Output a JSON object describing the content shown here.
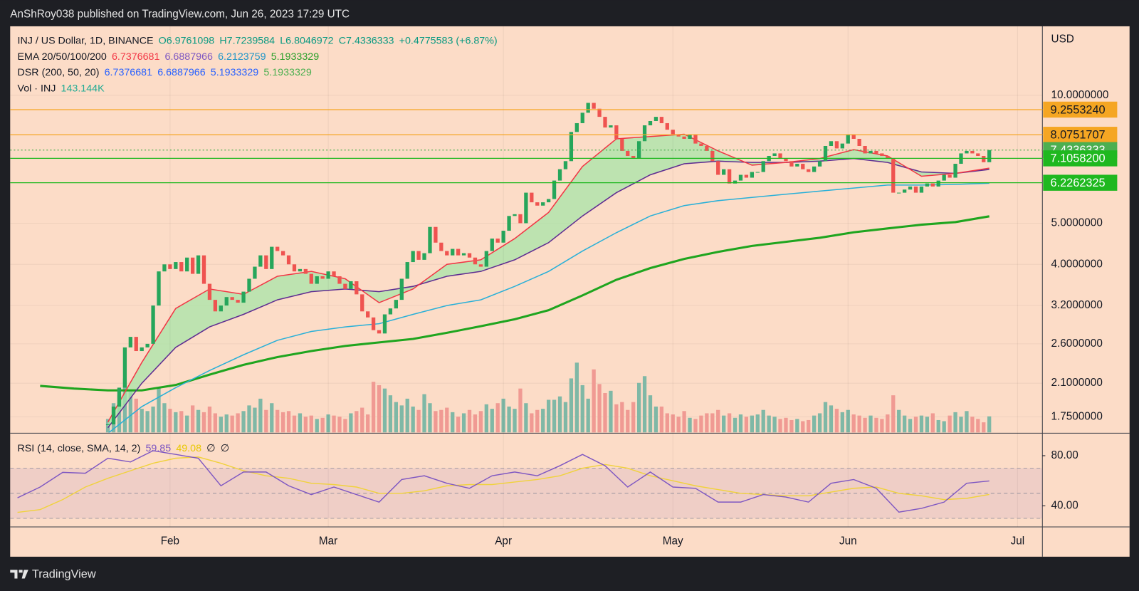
{
  "header": {
    "byline": "AnShRoy038 published on TradingView.com, Jun 26, 2023 17:29 UTC",
    "brand": "TradingView"
  },
  "chart_data": {
    "type": "candlestick",
    "log_scale": true,
    "currency": "USD",
    "legend": [
      [
        {
          "text": "INJ / US Dollar, 1D, BINANCE",
          "color": "#131722"
        },
        {
          "text": "O6.9761098",
          "color": "#089981"
        },
        {
          "text": "H7.7239584",
          "color": "#089981"
        },
        {
          "text": "L6.8046972",
          "color": "#089981"
        },
        {
          "text": "C7.4336333",
          "color": "#089981"
        },
        {
          "text": "+0.4775583 (+6.87%)",
          "color": "#089981"
        }
      ],
      [
        {
          "text": "EMA 20/50/100/200",
          "color": "#131722"
        },
        {
          "text": "6.7376681",
          "color": "#f23645"
        },
        {
          "text": "6.6887966",
          "color": "#7e57c2"
        },
        {
          "text": "6.2123759",
          "color": "#2196c8"
        },
        {
          "text": "5.1933329",
          "color": "#2ca02c"
        }
      ],
      [
        {
          "text": "DSR (200, 50, 20)",
          "color": "#131722"
        },
        {
          "text": "6.7376681",
          "color": "#2962ff"
        },
        {
          "text": "6.6887966",
          "color": "#2962ff"
        },
        {
          "text": "5.1933329",
          "color": "#2962ff"
        },
        {
          "text": "5.1933329",
          "color": "#4caf50"
        }
      ],
      [
        {
          "text": "Vol · INJ",
          "color": "#131722"
        },
        {
          "text": "143.144K",
          "color": "#22ab94"
        }
      ]
    ],
    "xlim": [
      2.7,
      185.4
    ],
    "xticks": [
      {
        "value": 31,
        "label": "Feb"
      },
      {
        "value": 59,
        "label": "Mar"
      },
      {
        "value": 90,
        "label": "Apr"
      },
      {
        "value": 120,
        "label": "May"
      },
      {
        "value": 151,
        "label": "Jun"
      },
      {
        "value": 181,
        "label": "Jul"
      }
    ],
    "ylim": [
      1.608,
      14.54
    ],
    "yticks": [
      {
        "value": 10,
        "label": "10.0000000"
      },
      {
        "value": 5,
        "label": "5.0000000"
      },
      {
        "value": 4,
        "label": "4.0000000"
      },
      {
        "value": 3.2,
        "label": "3.2000000"
      },
      {
        "value": 2.6,
        "label": "2.6000000"
      },
      {
        "value": 2.1,
        "label": "2.1000000"
      },
      {
        "value": 1.75,
        "label": "1.7500000"
      }
    ],
    "up_color": "#26a65b",
    "down_color": "#ef5350",
    "vol_up_color": "#7fb8a6",
    "vol_down_color": "#f09a93",
    "x": [
      20,
      21,
      22,
      23,
      24,
      25,
      26,
      27,
      28,
      29,
      30,
      31,
      32,
      33,
      34,
      35,
      36,
      37,
      38,
      39,
      40,
      41,
      42,
      43,
      44,
      45,
      46,
      47,
      48,
      49,
      50,
      51,
      52,
      53,
      54,
      55,
      56,
      57,
      58,
      59,
      60,
      61,
      62,
      63,
      64,
      65,
      66,
      67,
      68,
      69,
      70,
      71,
      72,
      73,
      74,
      75,
      76,
      77,
      78,
      79,
      80,
      81,
      82,
      83,
      84,
      85,
      86,
      87,
      88,
      89,
      90,
      91,
      92,
      93,
      94,
      95,
      96,
      97,
      98,
      99,
      100,
      101,
      102,
      103,
      104,
      105,
      106,
      107,
      108,
      109,
      110,
      111,
      112,
      113,
      114,
      115,
      116,
      117,
      118,
      119,
      120,
      121,
      122,
      123,
      124,
      125,
      126,
      127,
      128,
      129,
      130,
      131,
      132,
      133,
      134,
      135,
      136,
      137,
      138,
      139,
      140,
      141,
      142,
      143,
      144,
      145,
      146,
      147,
      148,
      149,
      150,
      151,
      152,
      153,
      154,
      155,
      156,
      157,
      158,
      159,
      160,
      161,
      162,
      163,
      164,
      165,
      166,
      167,
      168,
      169,
      170,
      171,
      172,
      173,
      174,
      175,
      176
    ],
    "close": [
      1.68,
      1.85,
      2.05,
      2.55,
      2.7,
      2.5,
      2.55,
      2.6,
      3.2,
      3.85,
      4.0,
      3.9,
      4.05,
      3.85,
      4.15,
      3.8,
      4.2,
      3.6,
      3.3,
      3.1,
      3.2,
      3.35,
      3.3,
      3.25,
      3.45,
      3.7,
      3.95,
      4.2,
      3.9,
      4.4,
      4.3,
      4.2,
      4.0,
      3.85,
      3.9,
      3.8,
      3.6,
      3.75,
      3.7,
      3.85,
      3.75,
      3.6,
      3.5,
      3.65,
      3.4,
      3.1,
      3.0,
      2.8,
      2.75,
      3.05,
      3.15,
      3.3,
      3.7,
      4.05,
      4.3,
      4.1,
      4.25,
      4.9,
      4.5,
      4.3,
      4.2,
      4.35,
      4.2,
      4.25,
      4.15,
      4.0,
      3.95,
      4.3,
      4.6,
      4.5,
      4.8,
      5.2,
      5.25,
      5.0,
      5.9,
      5.6,
      5.5,
      5.6,
      5.7,
      6.3,
      6.7,
      7.0,
      8.2,
      8.6,
      9.1,
      9.6,
      9.3,
      8.9,
      8.4,
      8.5,
      7.9,
      7.4,
      7.2,
      7.1,
      7.8,
      8.5,
      8.7,
      8.9,
      8.6,
      8.3,
      8.1,
      8.0,
      7.9,
      8.1,
      7.7,
      7.6,
      7.4,
      7.0,
      6.5,
      6.7,
      6.2,
      6.3,
      6.5,
      6.4,
      6.6,
      6.6,
      7.0,
      7.2,
      7.3,
      7.1,
      7.0,
      6.8,
      6.9,
      6.7,
      6.6,
      6.8,
      7.0,
      7.6,
      7.8,
      7.5,
      7.7,
      8.1,
      7.9,
      7.6,
      7.3,
      7.4,
      7.3,
      7.2,
      7.1,
      5.9,
      5.9,
      6.0,
      6.1,
      5.9,
      6.1,
      6.2,
      6.1,
      6.3,
      6.5,
      6.4,
      6.9,
      7.3,
      7.4,
      7.3,
      7.2,
      6.96,
      7.4336333
    ],
    "volume": [
      120,
      260,
      330,
      480,
      380,
      300,
      210,
      190,
      230,
      400,
      260,
      210,
      180,
      190,
      150,
      240,
      200,
      180,
      230,
      170,
      140,
      160,
      150,
      170,
      190,
      240,
      220,
      300,
      200,
      260,
      200,
      180,
      190,
      150,
      170,
      140,
      150,
      120,
      130,
      160,
      150,
      140,
      120,
      170,
      190,
      220,
      160,
      450,
      420,
      390,
      330,
      270,
      240,
      300,
      230,
      200,
      340,
      260,
      190,
      200,
      220,
      180,
      140,
      170,
      200,
      160,
      190,
      250,
      210,
      260,
      300,
      230,
      210,
      390,
      260,
      170,
      200,
      210,
      290,
      290,
      320,
      270,
      480,
      620,
      420,
      300,
      560,
      430,
      350,
      370,
      250,
      270,
      200,
      270,
      440,
      500,
      330,
      230,
      230,
      170,
      160,
      140,
      190,
      130,
      120,
      150,
      170,
      170,
      200,
      150,
      170,
      130,
      160,
      140,
      150,
      160,
      200,
      150,
      140,
      120,
      130,
      110,
      120,
      100,
      110,
      150,
      170,
      270,
      240,
      210,
      180,
      200,
      160,
      150,
      130,
      150,
      130,
      120,
      160,
      330,
      200,
      150,
      120,
      140,
      150,
      140,
      170,
      110,
      100,
      150,
      180,
      140,
      190,
      140,
      120,
      90,
      143.144
    ],
    "line_x": [
      8,
      14,
      20,
      26,
      32,
      38,
      44,
      50,
      56,
      62,
      68,
      74,
      80,
      86,
      92,
      98,
      104,
      110,
      116,
      122,
      128,
      134,
      140,
      146,
      152,
      158,
      164,
      170,
      176
    ],
    "cloud_color": "#a8e6a8",
    "lines": [
      {
        "color": "#1fa51f",
        "width": 3,
        "values": [
          2.07,
          2.04,
          2.02,
          2.02,
          2.08,
          2.2,
          2.32,
          2.42,
          2.5,
          2.57,
          2.62,
          2.67,
          2.76,
          2.86,
          2.97,
          3.12,
          3.38,
          3.68,
          3.92,
          4.12,
          4.28,
          4.42,
          4.52,
          4.62,
          4.76,
          4.86,
          4.96,
          5.03,
          5.19
        ]
      },
      {
        "color": "#29b0d8",
        "width": 1.5,
        "values": [
          null,
          null,
          1.6,
          1.85,
          2.05,
          2.25,
          2.45,
          2.65,
          2.78,
          2.85,
          2.9,
          3.05,
          3.2,
          3.3,
          3.55,
          3.85,
          4.3,
          4.75,
          5.2,
          5.5,
          5.65,
          5.75,
          5.85,
          5.95,
          6.05,
          6.15,
          6.15,
          6.17,
          6.21
        ]
      },
      {
        "color": "#5e2d91",
        "width": 1.5,
        "values": [
          null,
          null,
          1.65,
          2.1,
          2.55,
          2.85,
          3.05,
          3.3,
          3.45,
          3.5,
          3.45,
          3.55,
          3.75,
          3.85,
          4.1,
          4.5,
          5.2,
          5.9,
          6.5,
          6.9,
          7.0,
          6.95,
          6.95,
          7.0,
          7.1,
          6.95,
          6.6,
          6.55,
          6.69
        ]
      },
      {
        "color": "#f23645",
        "width": 1.5,
        "values": [
          null,
          null,
          1.7,
          2.35,
          3.15,
          3.5,
          3.4,
          3.75,
          3.85,
          3.7,
          3.25,
          3.5,
          4.0,
          4.1,
          4.6,
          5.3,
          6.8,
          7.9,
          8.0,
          8.1,
          7.4,
          6.85,
          6.95,
          7.1,
          7.45,
          7.2,
          6.45,
          6.55,
          6.74
        ]
      }
    ],
    "levels": [
      {
        "value": 9.255324,
        "label": "9.2553240",
        "color": "#f5a623",
        "label_color": "#131722",
        "style": "solid"
      },
      {
        "value": 8.0751707,
        "label": "8.0751707",
        "color": "#f5a623",
        "label_color": "#131722",
        "style": "solid"
      },
      {
        "value": 7.4336333,
        "label": "7.4336333",
        "color": "#4caf50",
        "label_color": "#ffffff",
        "style": "dotted"
      },
      {
        "value": 7.10582,
        "label": "7.1058200",
        "color": "#1fb81f",
        "label_color": "#ffffff",
        "style": "solid"
      },
      {
        "value": 6.2262325,
        "label": "6.2262325",
        "color": "#1fb81f",
        "label_color": "#ffffff",
        "style": "solid"
      }
    ],
    "rsi": {
      "legend": [
        {
          "text": "RSI (14, close, SMA, 14, 2)",
          "color": "#131722"
        },
        {
          "text": "59.85",
          "color": "#7e57c2"
        },
        {
          "text": "49.08",
          "color": "#e8c800"
        },
        {
          "text": "∅",
          "color": "#131722"
        },
        {
          "text": "∅",
          "color": "#131722"
        }
      ],
      "ylim": [
        23.2,
        96.8
      ],
      "yticks": [
        {
          "value": 80,
          "label": "80.00"
        },
        {
          "value": 40,
          "label": "40.00"
        }
      ],
      "band_levels": [
        70,
        50,
        30
      ],
      "x": [
        4,
        8,
        12,
        16,
        20,
        24,
        28,
        32,
        36,
        40,
        44,
        48,
        52,
        56,
        60,
        64,
        68,
        72,
        76,
        80,
        84,
        88,
        92,
        96,
        100,
        104,
        108,
        112,
        116,
        120,
        124,
        128,
        132,
        136,
        140,
        144,
        148,
        152,
        156,
        160,
        164,
        168,
        172,
        176
      ],
      "series": [
        {
          "color": "#7e57c2",
          "values": [
            46.4,
            55,
            66.7,
            66,
            78,
            75,
            84,
            81,
            78,
            56,
            67,
            67,
            56,
            49,
            55,
            49,
            43,
            61,
            64,
            58,
            54,
            64,
            67,
            64,
            72,
            81,
            72,
            55,
            67,
            55,
            54,
            43,
            43,
            49,
            47,
            43,
            58,
            61,
            54,
            35,
            38,
            43,
            58,
            59.85
          ]
        },
        {
          "color": "#f0d23c",
          "values": [
            34.8,
            37,
            45,
            55,
            62,
            68,
            74,
            78,
            79,
            74,
            68,
            64,
            62,
            58,
            57,
            55,
            50,
            50,
            52,
            56,
            57,
            57,
            59,
            61,
            64,
            70,
            73,
            70,
            64,
            60,
            56,
            53,
            50,
            49,
            48,
            48,
            51,
            54,
            55,
            50,
            48,
            45,
            46,
            49.08
          ]
        }
      ]
    }
  }
}
